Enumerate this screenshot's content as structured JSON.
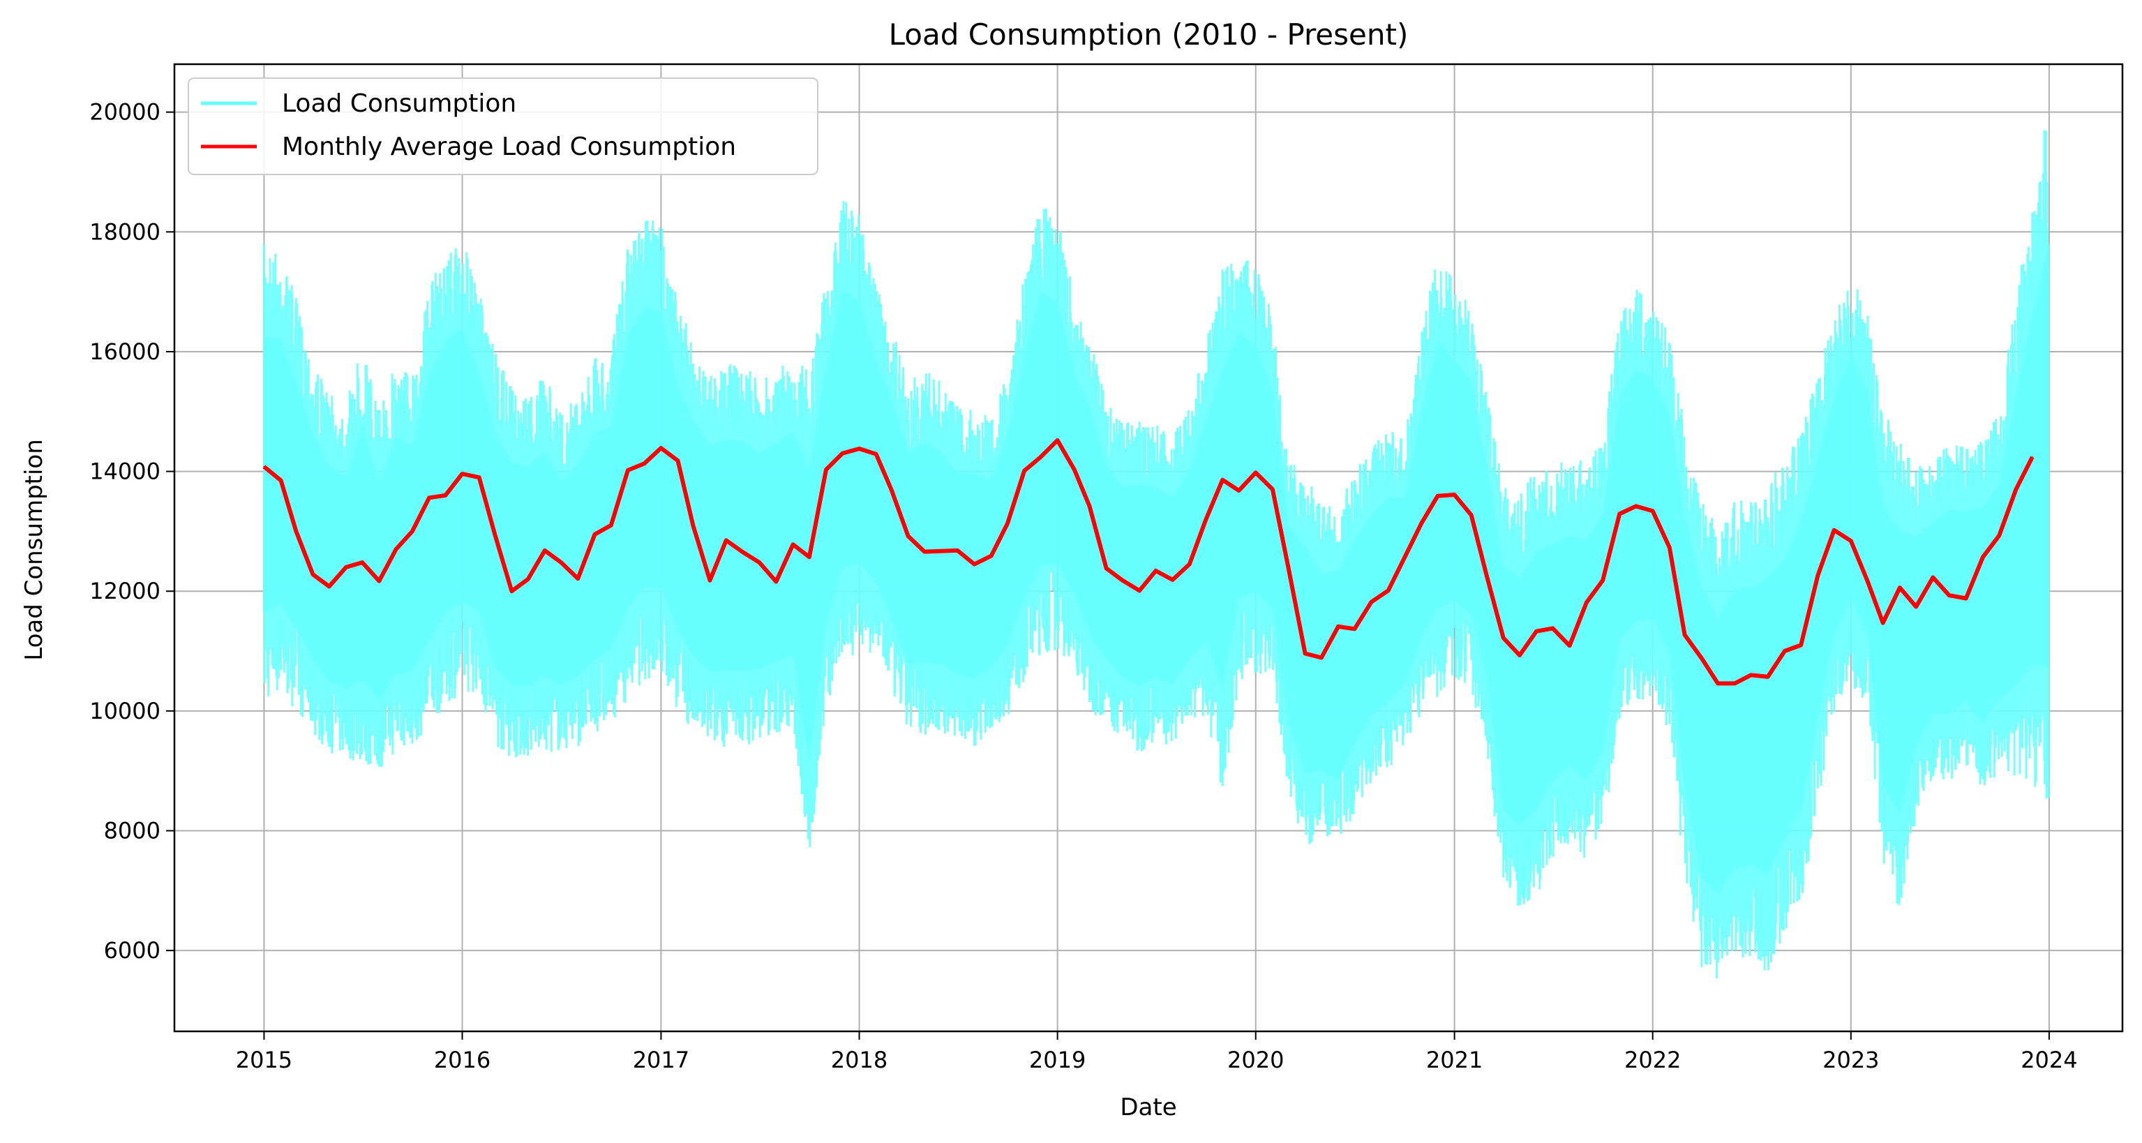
{
  "chart_data": {
    "type": "line",
    "title": "Load Consumption (2010 - Present)",
    "xlabel": "Date",
    "ylabel": "Load Consumption",
    "xlim": [
      "2014-07-20",
      "2024-05-15"
    ],
    "ylim": [
      4650,
      20800
    ],
    "x_ticks": [
      "2015",
      "2016",
      "2017",
      "2018",
      "2019",
      "2020",
      "2021",
      "2022",
      "2023",
      "2024"
    ],
    "y_ticks": [
      6000,
      8000,
      10000,
      12000,
      14000,
      16000,
      18000,
      20000
    ],
    "y_tick_labels": [
      "6000",
      "8000",
      "10000",
      "12000",
      "14000",
      "16000",
      "18000",
      "20000"
    ],
    "grid": true,
    "legend": {
      "placement": "top-left"
    },
    "series": [
      {
        "name": "Load Consumption",
        "color": "#66ffff",
        "style": "daily band (min/max envelope)",
        "dates": [
          "2015-01-01",
          "2015-02-01",
          "2015-03-01",
          "2015-04-01",
          "2015-05-01",
          "2015-06-01",
          "2015-07-01",
          "2015-08-01",
          "2015-09-01",
          "2015-10-01",
          "2015-11-01",
          "2015-12-01",
          "2016-01-01",
          "2016-02-01",
          "2016-03-01",
          "2016-04-01",
          "2016-05-01",
          "2016-06-01",
          "2016-07-01",
          "2016-08-01",
          "2016-09-01",
          "2016-10-01",
          "2016-11-01",
          "2016-12-01",
          "2017-01-01",
          "2017-02-01",
          "2017-03-01",
          "2017-04-01",
          "2017-05-01",
          "2017-06-01",
          "2017-07-01",
          "2017-08-01",
          "2017-09-01",
          "2017-10-01",
          "2017-11-01",
          "2017-12-01",
          "2018-01-01",
          "2018-02-01",
          "2018-03-01",
          "2018-04-01",
          "2018-05-01",
          "2018-06-01",
          "2018-07-01",
          "2018-08-01",
          "2018-09-01",
          "2018-10-01",
          "2018-11-01",
          "2018-12-01",
          "2019-01-01",
          "2019-02-01",
          "2019-03-01",
          "2019-04-01",
          "2019-05-01",
          "2019-06-01",
          "2019-07-01",
          "2019-08-01",
          "2019-09-01",
          "2019-10-01",
          "2019-11-01",
          "2019-12-01",
          "2020-01-01",
          "2020-02-01",
          "2020-03-01",
          "2020-04-01",
          "2020-05-01",
          "2020-06-01",
          "2020-07-01",
          "2020-08-01",
          "2020-09-01",
          "2020-10-01",
          "2020-11-01",
          "2020-12-01",
          "2021-01-01",
          "2021-02-01",
          "2021-03-01",
          "2021-04-01",
          "2021-05-01",
          "2021-06-01",
          "2021-07-01",
          "2021-08-01",
          "2021-09-01",
          "2021-10-01",
          "2021-11-01",
          "2021-12-01",
          "2022-01-01",
          "2022-02-01",
          "2022-03-01",
          "2022-04-01",
          "2022-05-01",
          "2022-06-01",
          "2022-07-01",
          "2022-08-01",
          "2022-09-01",
          "2022-10-01",
          "2022-11-01",
          "2022-12-01",
          "2023-01-01",
          "2023-02-01",
          "2023-03-01",
          "2023-04-01",
          "2023-05-01",
          "2023-06-01",
          "2023-07-01",
          "2023-08-01",
          "2023-09-01",
          "2023-10-01",
          "2023-11-01",
          "2023-12-01",
          "2023-12-31"
        ],
        "max": [
          17800,
          17700,
          16900,
          15900,
          15300,
          15100,
          16200,
          15000,
          15900,
          15700,
          17100,
          17700,
          17900,
          17000,
          16000,
          15400,
          15300,
          15600,
          15000,
          15300,
          15900,
          16000,
          17800,
          18300,
          18200,
          16800,
          16200,
          15700,
          15800,
          15800,
          15500,
          15700,
          15900,
          15700,
          17200,
          18600,
          18300,
          17100,
          16500,
          15500,
          15700,
          15500,
          15100,
          15100,
          14900,
          15800,
          17300,
          18500,
          18300,
          16900,
          16400,
          15200,
          14800,
          14900,
          14800,
          14600,
          15100,
          16100,
          17500,
          17800,
          17500,
          16600,
          14200,
          14000,
          13400,
          13500,
          14000,
          14400,
          14700,
          14600,
          16300,
          17700,
          17200,
          16800,
          15300,
          13800,
          13600,
          14100,
          14100,
          14200,
          14200,
          14600,
          16600,
          17100,
          16900,
          16300,
          14800,
          13700,
          13100,
          13600,
          13600,
          13900,
          14100,
          14800,
          15700,
          16600,
          17300,
          16700,
          15000,
          14600,
          14100,
          14200,
          14500,
          14400,
          14600,
          15000,
          16900,
          18600,
          20100
        ],
        "min": [
          10100,
          10300,
          10000,
          9600,
          9300,
          9200,
          9100,
          9000,
          9300,
          9400,
          9700,
          10100,
          10300,
          10300,
          9400,
          9200,
          9200,
          9300,
          9300,
          9400,
          9600,
          9800,
          10200,
          10500,
          10500,
          10000,
          9600,
          9400,
          9400,
          9400,
          9500,
          9600,
          9700,
          7500,
          10000,
          10800,
          11000,
          10900,
          10300,
          9600,
          9600,
          9600,
          9500,
          9400,
          9700,
          9900,
          10500,
          10900,
          11000,
          10700,
          10000,
          9800,
          9500,
          9300,
          9500,
          9400,
          9800,
          9900,
          8600,
          10400,
          10600,
          10500,
          8700,
          7700,
          7900,
          7700,
          8300,
          8800,
          9000,
          9400,
          9900,
          10200,
          10500,
          10300,
          9400,
          7000,
          6700,
          6900,
          7500,
          7800,
          7500,
          8000,
          9800,
          10100,
          10200,
          9600,
          7200,
          5600,
          5400,
          5800,
          5900,
          5600,
          6300,
          6700,
          8400,
          9900,
          10500,
          9900,
          7200,
          6700,
          8200,
          8900,
          8800,
          9100,
          8600,
          9000,
          8800,
          8800,
          8400
        ]
      },
      {
        "name": "Monthly Average Load Consumption",
        "color": "#ff0000",
        "x": [
          "2015-01-01",
          "2015-02-01",
          "2015-03-01",
          "2015-04-01",
          "2015-05-01",
          "2015-06-01",
          "2015-07-01",
          "2015-08-01",
          "2015-09-01",
          "2015-10-01",
          "2015-11-01",
          "2015-12-01",
          "2016-01-01",
          "2016-02-01",
          "2016-03-01",
          "2016-04-01",
          "2016-05-01",
          "2016-06-01",
          "2016-07-01",
          "2016-08-01",
          "2016-09-01",
          "2016-10-01",
          "2016-11-01",
          "2016-12-01",
          "2017-01-01",
          "2017-02-01",
          "2017-03-01",
          "2017-04-01",
          "2017-05-01",
          "2017-06-01",
          "2017-07-01",
          "2017-08-01",
          "2017-09-01",
          "2017-10-01",
          "2017-11-01",
          "2017-12-01",
          "2018-01-01",
          "2018-02-01",
          "2018-03-01",
          "2018-04-01",
          "2018-05-01",
          "2018-06-01",
          "2018-07-01",
          "2018-08-01",
          "2018-09-01",
          "2018-10-01",
          "2018-11-01",
          "2018-12-01",
          "2019-01-01",
          "2019-02-01",
          "2019-03-01",
          "2019-04-01",
          "2019-05-01",
          "2019-06-01",
          "2019-07-01",
          "2019-08-01",
          "2019-09-01",
          "2019-10-01",
          "2019-11-01",
          "2019-12-01",
          "2020-01-01",
          "2020-02-01",
          "2020-03-01",
          "2020-04-01",
          "2020-05-01",
          "2020-06-01",
          "2020-07-01",
          "2020-08-01",
          "2020-09-01",
          "2020-10-01",
          "2020-11-01",
          "2020-12-01",
          "2021-01-01",
          "2021-02-01",
          "2021-03-01",
          "2021-04-01",
          "2021-05-01",
          "2021-06-01",
          "2021-07-01",
          "2021-08-01",
          "2021-09-01",
          "2021-10-01",
          "2021-11-01",
          "2021-12-01",
          "2022-01-01",
          "2022-02-01",
          "2022-03-01",
          "2022-04-01",
          "2022-05-01",
          "2022-06-01",
          "2022-07-01",
          "2022-08-01",
          "2022-09-01",
          "2022-10-01",
          "2022-11-01",
          "2022-12-01",
          "2023-01-01",
          "2023-02-01",
          "2023-03-01",
          "2023-04-01",
          "2023-05-01",
          "2023-06-01",
          "2023-07-01",
          "2023-08-01",
          "2023-09-01",
          "2023-10-01",
          "2023-11-01",
          "2023-12-01"
        ],
        "y": [
          14080,
          13850,
          13000,
          12280,
          12080,
          12400,
          12480,
          12170,
          12700,
          13000,
          13560,
          13600,
          13960,
          13900,
          12950,
          12000,
          12200,
          12680,
          12480,
          12210,
          12950,
          13100,
          14020,
          14130,
          14390,
          14180,
          13100,
          12180,
          12850,
          12650,
          12480,
          12160,
          12780,
          12570,
          14030,
          14300,
          14380,
          14290,
          13700,
          12920,
          12660,
          12670,
          12680,
          12450,
          12590,
          13130,
          14010,
          14240,
          14520,
          14030,
          13420,
          12380,
          12180,
          12010,
          12340,
          12190,
          12450,
          13190,
          13860,
          13680,
          13980,
          13700,
          12400,
          10960,
          10890,
          11410,
          11370,
          11820,
          12010,
          12560,
          13130,
          13590,
          13610,
          13270,
          12270,
          11220,
          10930,
          11330,
          11380,
          11090,
          11810,
          12180,
          13290,
          13420,
          13340,
          12730,
          11270,
          10880,
          10460,
          10460,
          10600,
          10570,
          11000,
          11100,
          12260,
          13020,
          12840,
          12160,
          11470,
          12060,
          11740,
          12230,
          11930,
          11880,
          12570,
          12930,
          13700,
          14240
        ]
      }
    ]
  }
}
